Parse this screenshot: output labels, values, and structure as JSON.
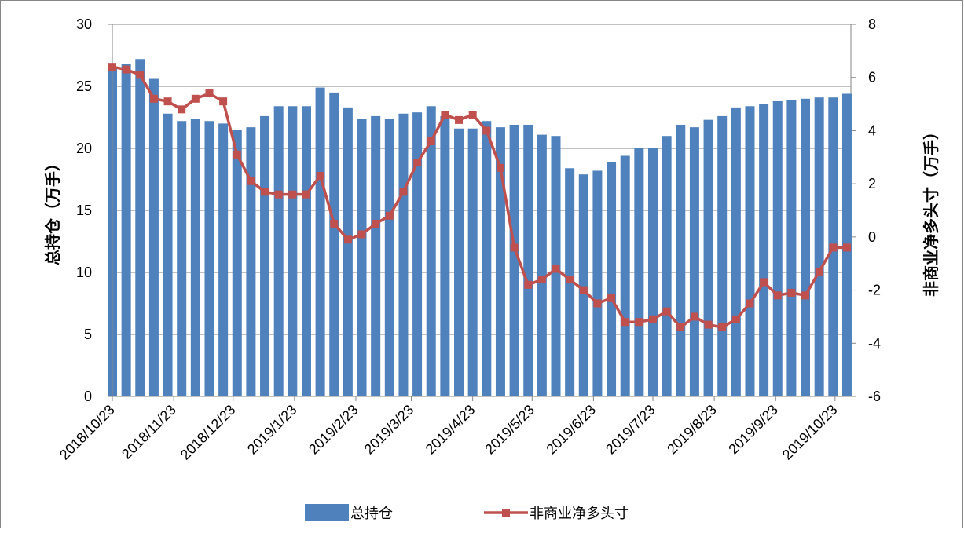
{
  "chart_data": {
    "type": "bar-line",
    "x": [
      "2018/10/23",
      "2018/10/30",
      "2018/11/6",
      "2018/11/13",
      "2018/11/20",
      "2018/11/27",
      "2018/12/4",
      "2018/12/11",
      "2018/12/18",
      "2018/12/25",
      "2019/1/1",
      "2019/1/8",
      "2019/1/15",
      "2019/1/22",
      "2019/1/29",
      "2019/2/5",
      "2019/2/12",
      "2019/2/19",
      "2019/2/26",
      "2019/3/5",
      "2019/3/12",
      "2019/3/19",
      "2019/3/26",
      "2019/4/2",
      "2019/4/9",
      "2019/4/16",
      "2019/4/23",
      "2019/4/30",
      "2019/5/7",
      "2019/5/14",
      "2019/5/21",
      "2019/5/28",
      "2019/6/4",
      "2019/6/11",
      "2019/6/18",
      "2019/6/25",
      "2019/7/2",
      "2019/7/9",
      "2019/7/16",
      "2019/7/23",
      "2019/7/30",
      "2019/8/6",
      "2019/8/13",
      "2019/8/20",
      "2019/8/27",
      "2019/9/3",
      "2019/9/10",
      "2019/9/17",
      "2019/9/24",
      "2019/10/1",
      "2019/10/8",
      "2019/10/15",
      "2019/10/22",
      "2019/10/29"
    ],
    "series": [
      {
        "name": "总持仓",
        "type": "bar",
        "color": "#4f81bd",
        "axis": "y",
        "values": [
          26.6,
          26.8,
          27.2,
          25.6,
          22.8,
          22.2,
          22.4,
          22.2,
          22.0,
          21.5,
          21.7,
          22.6,
          23.4,
          23.4,
          23.4,
          24.9,
          24.5,
          23.3,
          22.4,
          22.6,
          22.4,
          22.8,
          22.9,
          23.4,
          22.6,
          21.6,
          21.6,
          22.2,
          21.7,
          21.9,
          21.9,
          21.1,
          21.0,
          18.4,
          17.9,
          18.2,
          18.9,
          19.4,
          20.0,
          20.0,
          21.0,
          21.9,
          21.7,
          22.3,
          22.6,
          23.3,
          23.4,
          23.6,
          23.8,
          23.9,
          24.0,
          24.1,
          24.1,
          24.4
        ]
      },
      {
        "name": "非商业净多头寸",
        "type": "line",
        "color": "#c0504d",
        "axis": "y2",
        "values": [
          6.4,
          6.3,
          6.1,
          5.2,
          5.1,
          4.8,
          5.2,
          5.4,
          5.1,
          3.1,
          2.1,
          1.7,
          1.6,
          1.6,
          1.6,
          2.3,
          0.5,
          -0.1,
          0.1,
          0.5,
          0.8,
          1.7,
          2.8,
          3.6,
          4.6,
          4.4,
          4.6,
          4.0,
          2.6,
          -0.4,
          -1.8,
          -1.6,
          -1.2,
          -1.6,
          -2.0,
          -2.5,
          -2.3,
          -3.2,
          -3.2,
          -3.1,
          -2.8,
          -3.4,
          -3.0,
          -3.3,
          -3.4,
          -3.1,
          -2.5,
          -1.7,
          -2.2,
          -2.1,
          -2.2,
          -1.3,
          -0.4,
          -0.4
        ]
      }
    ],
    "xlim": [
      "2018/10/23",
      "2019/10/31"
    ],
    "xticks": [
      "2018/10/23",
      "2018/11/23",
      "2018/12/23",
      "2019/1/23",
      "2019/2/23",
      "2019/3/23",
      "2019/4/23",
      "2019/5/23",
      "2019/6/23",
      "2019/7/23",
      "2019/8/23",
      "2019/9/23",
      "2019/10/23"
    ],
    "ylim": [
      0,
      30
    ],
    "yticks": [
      0,
      5,
      10,
      15,
      20,
      25,
      30
    ],
    "y2lim": [
      -6,
      8
    ],
    "y2ticks": [
      -6,
      -4,
      -2,
      0,
      2,
      4,
      6,
      8
    ],
    "ylabel": "总持仓（万手）",
    "y2label": "非商业净多头寸（万手）",
    "grid": true,
    "legend": "bottom"
  }
}
